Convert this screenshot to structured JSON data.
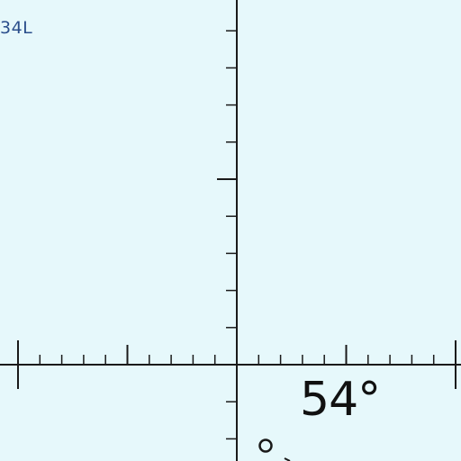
{
  "corner_label": "34L",
  "angle_label": "54°",
  "colors": {
    "background": "#e6f8fb",
    "axis": "#1a1a1a",
    "corner_label": "#2b4f8c",
    "angle_label": "#111111"
  },
  "diagram": {
    "type": "coordinate-axes",
    "elements": [
      "horizontal-axis",
      "vertical-axis",
      "tick-marks",
      "point-marker"
    ]
  }
}
